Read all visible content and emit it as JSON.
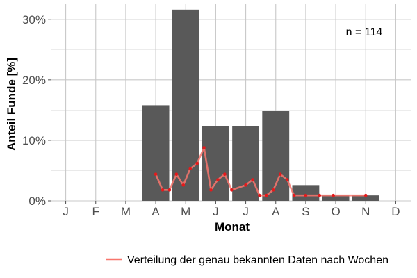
{
  "chart_data": {
    "type": "bar",
    "title": "",
    "xlabel": "Monat",
    "ylabel": "Anteil Funde [%]",
    "categories": [
      "J",
      "F",
      "M",
      "A",
      "M",
      "J",
      "J",
      "A",
      "S",
      "O",
      "N",
      "D"
    ],
    "values": [
      0,
      0,
      0,
      15.8,
      31.6,
      12.3,
      12.3,
      14.9,
      2.6,
      0.9,
      0.9,
      0
    ],
    "ylim": [
      0,
      32.5
    ],
    "yticks": [
      0,
      10,
      20,
      30
    ],
    "ytick_labels": [
      "0%",
      "10%",
      "20%",
      "30%"
    ],
    "grid": true,
    "bar_color": "#595959",
    "annotation": "n = 114",
    "line_series": {
      "name": "Verteilung der genau bekannten Daten nach Wochen",
      "color": "#f8766d",
      "points": [
        {
          "x": 3.0,
          "y": 4.4
        },
        {
          "x": 3.23,
          "y": 1.8
        },
        {
          "x": 3.46,
          "y": 1.8
        },
        {
          "x": 3.69,
          "y": 4.4
        },
        {
          "x": 3.92,
          "y": 2.6
        },
        {
          "x": 4.15,
          "y": 5.3
        },
        {
          "x": 4.38,
          "y": 6.2
        },
        {
          "x": 4.61,
          "y": 8.8
        },
        {
          "x": 4.84,
          "y": 1.8
        },
        {
          "x": 5.07,
          "y": 3.5
        },
        {
          "x": 5.3,
          "y": 4.4
        },
        {
          "x": 5.53,
          "y": 1.8
        },
        {
          "x": 6.0,
          "y": 2.6
        },
        {
          "x": 6.23,
          "y": 3.5
        },
        {
          "x": 6.46,
          "y": 0.9
        },
        {
          "x": 6.69,
          "y": 0.9
        },
        {
          "x": 6.92,
          "y": 1.8
        },
        {
          "x": 7.15,
          "y": 4.4
        },
        {
          "x": 7.38,
          "y": 3.5
        },
        {
          "x": 7.61,
          "y": 0.9
        },
        {
          "x": 8.0,
          "y": 0.9
        },
        {
          "x": 8.46,
          "y": 0.9
        },
        {
          "x": 8.92,
          "y": 0.9
        },
        {
          "x": 10.0,
          "y": 0.9
        }
      ]
    },
    "legend": {
      "position": "bottom",
      "label": "Verteilung der genau bekannten Daten nach Wochen"
    }
  }
}
